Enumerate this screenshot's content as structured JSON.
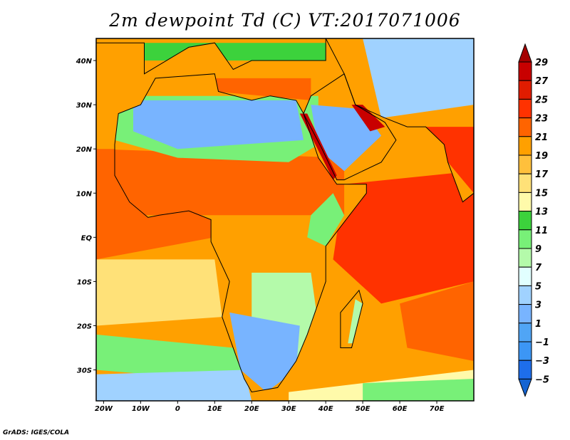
{
  "title": "2m dewpoint Td (C) VT:2017071006",
  "credit": "GrADS: IGES/COLA",
  "map": {
    "lon_range": [
      -22,
      80
    ],
    "lat_range": [
      -37,
      45
    ],
    "lon_ticks": [
      {
        "value": -20,
        "label": "20W"
      },
      {
        "value": -10,
        "label": "10W"
      },
      {
        "value": 0,
        "label": "0"
      },
      {
        "value": 10,
        "label": "10E"
      },
      {
        "value": 20,
        "label": "20E"
      },
      {
        "value": 30,
        "label": "30E"
      },
      {
        "value": 40,
        "label": "40E"
      },
      {
        "value": 50,
        "label": "50E"
      },
      {
        "value": 60,
        "label": "60E"
      },
      {
        "value": 70,
        "label": "70E"
      }
    ],
    "lat_ticks": [
      {
        "value": 40,
        "label": "40N"
      },
      {
        "value": 30,
        "label": "30N"
      },
      {
        "value": 20,
        "label": "20N"
      },
      {
        "value": 10,
        "label": "10N"
      },
      {
        "value": 0,
        "label": "EQ"
      },
      {
        "value": -10,
        "label": "10S"
      },
      {
        "value": -20,
        "label": "20S"
      },
      {
        "value": -30,
        "label": "30S"
      }
    ]
  },
  "colorbar": {
    "labels": [
      "29",
      "27",
      "25",
      "23",
      "21",
      "19",
      "17",
      "15",
      "13",
      "11",
      "9",
      "7",
      "5",
      "3",
      "1",
      "−1",
      "−3",
      "−5"
    ],
    "colors": [
      "#a50000",
      "#c80000",
      "#e11c00",
      "#ff3200",
      "#ff6400",
      "#ffa000",
      "#ffc03c",
      "#ffe178",
      "#fffaaa",
      "#3cd23c",
      "#78f078",
      "#b4faaa",
      "#e1ffff",
      "#a0d2ff",
      "#78b4ff",
      "#50a5f5",
      "#3c96f5",
      "#1e6eeb",
      "#1464d2"
    ]
  }
}
